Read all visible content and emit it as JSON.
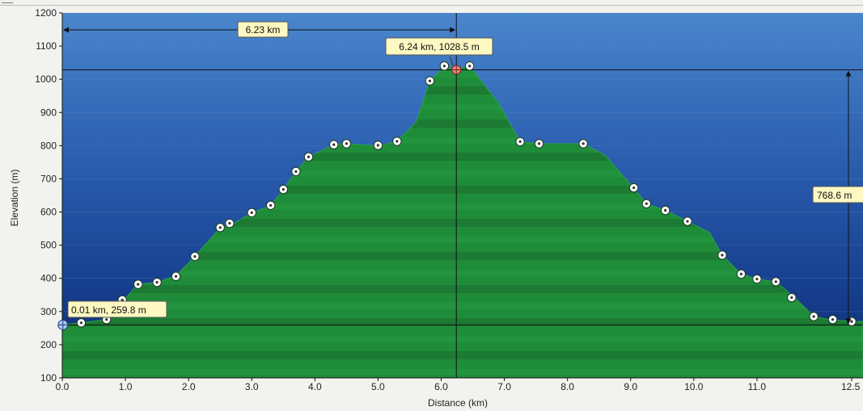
{
  "chart_data": {
    "type": "area",
    "xlabel": "Distance  (km)",
    "ylabel": "Elevation (m)",
    "xlim": [
      0,
      12.5
    ],
    "ylim": [
      100,
      1200
    ],
    "x_ticks": [
      "0.0",
      "1.0",
      "2.0",
      "3.0",
      "4.0",
      "5.0",
      "6.0",
      "7.0",
      "8.0",
      "9.0",
      "10.0",
      "11.0",
      "12.5"
    ],
    "y_ticks": [
      "100",
      "200",
      "300",
      "400",
      "500",
      "600",
      "700",
      "800",
      "900",
      "1000",
      "1100",
      "1200"
    ],
    "grid": "horizontal",
    "profile": {
      "x": [
        0.0,
        0.3,
        0.7,
        0.95,
        1.2,
        1.5,
        1.8,
        2.1,
        2.5,
        2.7,
        3.0,
        3.3,
        3.5,
        3.7,
        3.9,
        4.3,
        4.5,
        5.0,
        5.3,
        5.6,
        5.82,
        6.05,
        6.24,
        6.45,
        6.9,
        7.25,
        7.55,
        8.25,
        8.6,
        9.05,
        9.25,
        9.55,
        9.9,
        10.25,
        10.45,
        10.75,
        11.0,
        11.3,
        11.6,
        11.9,
        12.15,
        12.5
      ],
      "y": [
        260,
        266,
        276,
        330,
        382,
        388,
        408,
        466,
        553,
        563,
        598,
        619,
        668,
        722,
        766,
        803,
        806,
        799,
        813,
        870,
        995,
        1038,
        1030,
        1040,
        930,
        812,
        806,
        806,
        770,
        672,
        625,
        605,
        572,
        538,
        470,
        413,
        398,
        390,
        342,
        285,
        276,
        270
      ]
    },
    "waypoints": {
      "x": [
        0.3,
        0.7,
        0.95,
        1.2,
        1.5,
        1.8,
        2.1,
        2.5,
        2.65,
        3.0,
        3.3,
        3.5,
        3.7,
        3.9,
        4.3,
        4.5,
        5.0,
        5.3,
        5.82,
        6.05,
        6.45,
        7.25,
        7.55,
        8.25,
        9.05,
        9.25,
        9.55,
        9.9,
        10.45,
        10.75,
        11.0,
        11.3,
        11.55,
        11.9,
        12.2,
        12.5
      ],
      "y": [
        266,
        276,
        335,
        382,
        388,
        406,
        466,
        553,
        566,
        598,
        620,
        668,
        722,
        766,
        803,
        806,
        801,
        813,
        995,
        1040,
        1040,
        812,
        806,
        806,
        673,
        625,
        605,
        572,
        470,
        413,
        398,
        390,
        342,
        285,
        276,
        270
      ]
    },
    "cursor": {
      "x": 6.24,
      "y": 1028.5,
      "label": "6.24 km, 1028.5 m"
    },
    "start_marker": {
      "x": 0.01,
      "y": 259.8,
      "label": "0.01 km, 259.8 m"
    },
    "distance_annotation": {
      "label": "6.23 km",
      "from_x": 0.0,
      "to_x": 6.24
    },
    "elevation_annotation": {
      "label": "768.6 m",
      "from_y": 259.8,
      "to_y": 1028.5
    },
    "colors": {
      "sky_top": "#3d79c2",
      "sky_bottom": "#0a2a72",
      "terrain": "#1e8a38",
      "terrain_dark": "#16692b",
      "callout": "#fff8c2"
    }
  }
}
